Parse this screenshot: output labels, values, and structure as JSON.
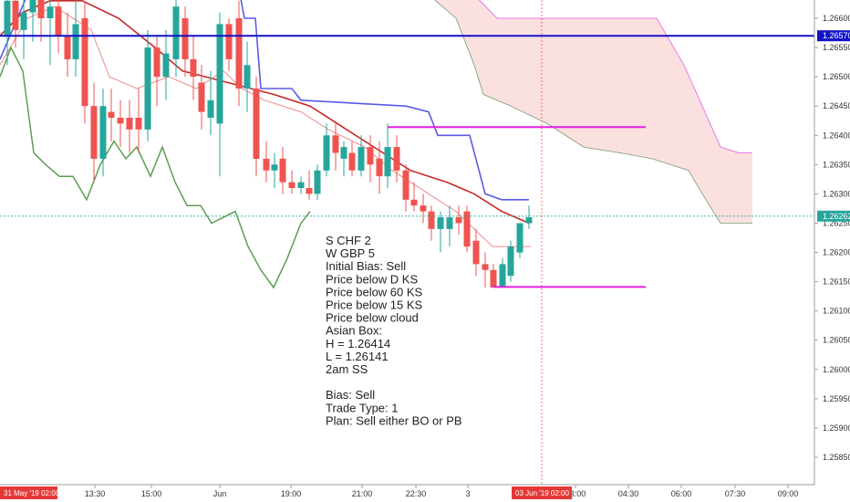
{
  "chart_data": {
    "type": "candlestick",
    "y_axis": {
      "ticks": [
        "1.26600",
        "1.26550",
        "1.26500",
        "1.26450",
        "1.26400",
        "1.26350",
        "1.26300",
        "1.26250",
        "1.26200",
        "1.26150",
        "1.26100",
        "1.26050",
        "1.26000",
        "1.25950",
        "1.25900",
        "1.25850"
      ],
      "range": [
        1.25825,
        1.26665
      ]
    },
    "x_axis": {
      "ticks": [
        "13:30",
        "15:00",
        "Jun",
        "19:00",
        "21:00",
        "22:30",
        "3",
        "03:00",
        "04:30",
        "06:00",
        "07:30",
        "09:00"
      ],
      "start_label": "31 May '19  02:00",
      "cursor_label": "03 Jun '19  02:00"
    },
    "price_labels": [
      {
        "value": "1.26570",
        "price": 1.2657,
        "color": "#1212c8"
      },
      {
        "value": "1.26262",
        "price": 1.26262,
        "color": "#26a69a"
      }
    ],
    "colors": {
      "up": "#26a69a",
      "down": "#ef5350",
      "kijun": "#5a5ae6",
      "ma": "#c62828",
      "tenkan": "#f08a8a",
      "lagging": "#5c9e52",
      "asian_box": "#e020e0",
      "cloud": "#fadada"
    },
    "candles": [
      {
        "x": 8,
        "o": 1.2657,
        "h": 1.2667,
        "l": 1.2652,
        "c": 1.2663
      },
      {
        "x": 17,
        "o": 1.2663,
        "h": 1.2666,
        "l": 1.2655,
        "c": 1.2658
      },
      {
        "x": 26,
        "o": 1.2658,
        "h": 1.2664,
        "l": 1.2653,
        "c": 1.2661
      },
      {
        "x": 36,
        "o": 1.2661,
        "h": 1.2666,
        "l": 1.2656,
        "c": 1.2665
      },
      {
        "x": 45,
        "o": 1.2665,
        "h": 1.2667,
        "l": 1.2656,
        "c": 1.266
      },
      {
        "x": 55,
        "o": 1.266,
        "h": 1.2664,
        "l": 1.2652,
        "c": 1.2662
      },
      {
        "x": 64,
        "o": 1.2662,
        "h": 1.2666,
        "l": 1.2654,
        "c": 1.2657
      },
      {
        "x": 74,
        "o": 1.2657,
        "h": 1.2661,
        "l": 1.265,
        "c": 1.2653
      },
      {
        "x": 83,
        "o": 1.2653,
        "h": 1.2665,
        "l": 1.265,
        "c": 1.2659
      },
      {
        "x": 93,
        "o": 1.266,
        "h": 1.2663,
        "l": 1.2642,
        "c": 1.2645
      },
      {
        "x": 103,
        "o": 1.2645,
        "h": 1.2649,
        "l": 1.2632,
        "c": 1.2636
      },
      {
        "x": 113,
        "o": 1.2636,
        "h": 1.2648,
        "l": 1.2633,
        "c": 1.2645
      },
      {
        "x": 122,
        "o": 1.2644,
        "h": 1.2648,
        "l": 1.2639,
        "c": 1.2643
      },
      {
        "x": 132,
        "o": 1.2643,
        "h": 1.2646,
        "l": 1.2638,
        "c": 1.2642
      },
      {
        "x": 142,
        "o": 1.2643,
        "h": 1.2646,
        "l": 1.2637,
        "c": 1.2641
      },
      {
        "x": 152,
        "o": 1.2643,
        "h": 1.2648,
        "l": 1.2637,
        "c": 1.2641
      },
      {
        "x": 162,
        "o": 1.2641,
        "h": 1.2658,
        "l": 1.2639,
        "c": 1.2655
      },
      {
        "x": 172,
        "o": 1.2655,
        "h": 1.2657,
        "l": 1.2645,
        "c": 1.265
      },
      {
        "x": 182,
        "o": 1.265,
        "h": 1.2658,
        "l": 1.2646,
        "c": 1.2654
      },
      {
        "x": 193,
        "o": 1.2653,
        "h": 1.2664,
        "l": 1.265,
        "c": 1.2662
      },
      {
        "x": 203,
        "o": 1.266,
        "h": 1.2662,
        "l": 1.265,
        "c": 1.2653
      },
      {
        "x": 212,
        "o": 1.2653,
        "h": 1.2657,
        "l": 1.2646,
        "c": 1.265
      },
      {
        "x": 221,
        "o": 1.2649,
        "h": 1.2652,
        "l": 1.2641,
        "c": 1.2644
      },
      {
        "x": 231,
        "o": 1.2643,
        "h": 1.2651,
        "l": 1.264,
        "c": 1.2646
      },
      {
        "x": 241,
        "o": 1.2642,
        "h": 1.2661,
        "l": 1.2633,
        "c": 1.2659
      },
      {
        "x": 251,
        "o": 1.2659,
        "h": 1.266,
        "l": 1.2651,
        "c": 1.2653
      },
      {
        "x": 262,
        "o": 1.266,
        "h": 1.2663,
        "l": 1.2645,
        "c": 1.2648
      },
      {
        "x": 271,
        "o": 1.2648,
        "h": 1.2656,
        "l": 1.2644,
        "c": 1.2652
      },
      {
        "x": 281,
        "o": 1.2648,
        "h": 1.265,
        "l": 1.2633,
        "c": 1.2636
      },
      {
        "x": 292,
        "o": 1.2636,
        "h": 1.2639,
        "l": 1.2632,
        "c": 1.2634
      },
      {
        "x": 301,
        "o": 1.2634,
        "h": 1.2637,
        "l": 1.2631,
        "c": 1.2635
      },
      {
        "x": 310,
        "o": 1.2636,
        "h": 1.2638,
        "l": 1.263,
        "c": 1.2632
      },
      {
        "x": 320,
        "o": 1.2632,
        "h": 1.2634,
        "l": 1.263,
        "c": 1.2631
      },
      {
        "x": 330,
        "o": 1.2631,
        "h": 1.2633,
        "l": 1.263,
        "c": 1.2632
      },
      {
        "x": 339,
        "o": 1.2631,
        "h": 1.2634,
        "l": 1.2629,
        "c": 1.263
      },
      {
        "x": 348,
        "o": 1.263,
        "h": 1.2635,
        "l": 1.2629,
        "c": 1.2634
      },
      {
        "x": 358,
        "o": 1.2634,
        "h": 1.2642,
        "l": 1.2633,
        "c": 1.264
      },
      {
        "x": 368,
        "o": 1.264,
        "h": 1.2642,
        "l": 1.2634,
        "c": 1.2637
      },
      {
        "x": 377,
        "o": 1.2636,
        "h": 1.2639,
        "l": 1.2633,
        "c": 1.2638
      },
      {
        "x": 386,
        "o": 1.2637,
        "h": 1.2639,
        "l": 1.2633,
        "c": 1.2634
      },
      {
        "x": 396,
        "o": 1.2634,
        "h": 1.264,
        "l": 1.2633,
        "c": 1.2638
      },
      {
        "x": 406,
        "o": 1.2638,
        "h": 1.264,
        "l": 1.2632,
        "c": 1.2635
      },
      {
        "x": 416,
        "o": 1.2636,
        "h": 1.2639,
        "l": 1.263,
        "c": 1.2633
      },
      {
        "x": 425,
        "o": 1.2633,
        "h": 1.2642,
        "l": 1.2631,
        "c": 1.2638
      },
      {
        "x": 435,
        "o": 1.2638,
        "h": 1.264,
        "l": 1.2632,
        "c": 1.2634
      },
      {
        "x": 445,
        "o": 1.2634,
        "h": 1.2635,
        "l": 1.2627,
        "c": 1.2629
      },
      {
        "x": 454,
        "o": 1.2629,
        "h": 1.2632,
        "l": 1.2627,
        "c": 1.2628
      },
      {
        "x": 464,
        "o": 1.2628,
        "h": 1.263,
        "l": 1.2625,
        "c": 1.2627
      },
      {
        "x": 473,
        "o": 1.2627,
        "h": 1.2628,
        "l": 1.2622,
        "c": 1.2624
      },
      {
        "x": 483,
        "o": 1.2624,
        "h": 1.2627,
        "l": 1.262,
        "c": 1.2626
      },
      {
        "x": 493,
        "o": 1.2624,
        "h": 1.2628,
        "l": 1.2621,
        "c": 1.2626
      },
      {
        "x": 503,
        "o": 1.2626,
        "h": 1.2628,
        "l": 1.2623,
        "c": 1.2625
      },
      {
        "x": 512,
        "o": 1.2627,
        "h": 1.2628,
        "l": 1.262,
        "c": 1.2621
      },
      {
        "x": 522,
        "o": 1.2622,
        "h": 1.2624,
        "l": 1.2616,
        "c": 1.2618
      },
      {
        "x": 532,
        "o": 1.2618,
        "h": 1.262,
        "l": 1.2614,
        "c": 1.2617
      },
      {
        "x": 541,
        "o": 1.2617,
        "h": 1.2618,
        "l": 1.2614,
        "c": 1.2614
      },
      {
        "x": 551,
        "o": 1.2614,
        "h": 1.2619,
        "l": 1.2614,
        "c": 1.2618
      },
      {
        "x": 560,
        "o": 1.2616,
        "h": 1.2622,
        "l": 1.2615,
        "c": 1.2621
      },
      {
        "x": 570,
        "o": 1.262,
        "h": 1.2625,
        "l": 1.2619,
        "c": 1.2625
      },
      {
        "x": 580,
        "o": 1.2625,
        "h": 1.2628,
        "l": 1.2624,
        "c": 1.2626
      }
    ],
    "lines": [
      {
        "name": "kijun",
        "points": [
          [
            0,
            1.2653
          ],
          [
            30,
            1.2664
          ],
          [
            60,
            1.2666
          ],
          [
            90,
            1.2666
          ],
          [
            110,
            1.2665
          ],
          [
            262,
            1.2665
          ],
          [
            268,
            1.266
          ],
          [
            280,
            1.266
          ],
          [
            286,
            1.2648
          ],
          [
            320,
            1.2648
          ],
          [
            330,
            1.2646
          ],
          [
            445,
            1.2645
          ],
          [
            470,
            1.2644
          ],
          [
            480,
            1.264
          ],
          [
            515,
            1.264
          ],
          [
            532,
            1.263
          ],
          [
            550,
            1.2629
          ],
          [
            580,
            1.2629
          ]
        ]
      },
      {
        "name": "ma",
        "points": [
          [
            0,
            1.2657
          ],
          [
            25,
            1.2661
          ],
          [
            55,
            1.2663
          ],
          [
            90,
            1.2663
          ],
          [
            130,
            1.266
          ],
          [
            170,
            1.2655
          ],
          [
            200,
            1.2651
          ],
          [
            250,
            1.2649
          ],
          [
            300,
            1.2647
          ],
          [
            340,
            1.2645
          ],
          [
            380,
            1.2641
          ],
          [
            420,
            1.2637
          ],
          [
            450,
            1.2634
          ],
          [
            490,
            1.2632
          ],
          [
            520,
            1.263
          ],
          [
            550,
            1.2627
          ],
          [
            580,
            1.2625
          ]
        ]
      },
      {
        "name": "tenkan",
        "points": [
          [
            0,
            1.2652
          ],
          [
            30,
            1.266
          ],
          [
            60,
            1.2662
          ],
          [
            100,
            1.2658
          ],
          [
            120,
            1.265
          ],
          [
            150,
            1.2648
          ],
          [
            185,
            1.265
          ],
          [
            215,
            1.2648
          ],
          [
            245,
            1.2651
          ],
          [
            265,
            1.2648
          ],
          [
            290,
            1.2646
          ],
          [
            330,
            1.2644
          ],
          [
            360,
            1.2641
          ],
          [
            400,
            1.2638
          ],
          [
            430,
            1.2634
          ],
          [
            470,
            1.263
          ],
          [
            500,
            1.2627
          ],
          [
            520,
            1.2624
          ],
          [
            540,
            1.2621
          ],
          [
            565,
            1.2621
          ],
          [
            582,
            1.2621
          ]
        ]
      },
      {
        "name": "lagging",
        "points": [
          [
            0,
            1.265
          ],
          [
            12,
            1.2655
          ],
          [
            25,
            1.2651
          ],
          [
            37,
            1.2637
          ],
          [
            50,
            1.2635
          ],
          [
            65,
            1.2633
          ],
          [
            80,
            1.2633
          ],
          [
            95,
            1.2629
          ],
          [
            110,
            1.2635
          ],
          [
            125,
            1.2639
          ],
          [
            138,
            1.2636
          ],
          [
            150,
            1.2638
          ],
          [
            165,
            1.2633
          ],
          [
            178,
            1.2638
          ],
          [
            192,
            1.2632
          ],
          [
            205,
            1.2628
          ],
          [
            220,
            1.2628
          ],
          [
            232,
            1.2625
          ],
          [
            245,
            1.2626
          ],
          [
            258,
            1.2627
          ],
          [
            272,
            1.2621
          ],
          [
            286,
            1.2617
          ],
          [
            300,
            1.2614
          ],
          [
            315,
            1.2619
          ],
          [
            330,
            1.2625
          ],
          [
            340,
            1.2627
          ]
        ]
      }
    ],
    "cloud": {
      "top": [
        [
          343,
          1.2672
        ],
        [
          400,
          1.2672
        ],
        [
          440,
          1.2672
        ],
        [
          490,
          1.2672
        ],
        [
          500,
          1.2668
        ],
        [
          520,
          1.2664
        ],
        [
          545,
          1.266
        ],
        [
          575,
          1.266
        ],
        [
          600,
          1.266
        ],
        [
          640,
          1.266
        ],
        [
          680,
          1.266
        ],
        [
          720,
          1.266
        ],
        [
          735,
          1.2656
        ],
        [
          750,
          1.2652
        ],
        [
          770,
          1.2645
        ],
        [
          790,
          1.2638
        ],
        [
          810,
          1.2637
        ],
        [
          825,
          1.2637
        ]
      ],
      "bottom": [
        [
          343,
          1.2672
        ],
        [
          380,
          1.2668
        ],
        [
          420,
          1.2664
        ],
        [
          470,
          1.2664
        ],
        [
          500,
          1.266
        ],
        [
          520,
          1.2652
        ],
        [
          530,
          1.2647
        ],
        [
          560,
          1.2645
        ],
        [
          600,
          1.2642
        ],
        [
          640,
          1.2638
        ],
        [
          680,
          1.2637
        ],
        [
          715,
          1.2636
        ],
        [
          735,
          1.2635
        ],
        [
          755,
          1.2634
        ],
        [
          770,
          1.263
        ],
        [
          790,
          1.2625
        ],
        [
          810,
          1.2625
        ],
        [
          825,
          1.2625
        ]
      ]
    },
    "asian_box": {
      "high": 1.26414,
      "low": 1.26141,
      "high_x": [
        425,
        708
      ],
      "low_x": [
        541,
        708
      ]
    },
    "horizontal_lines": [
      {
        "price": 1.2657,
        "color": "#1212c8"
      },
      {
        "price": 1.26262,
        "color": "#26a69a",
        "dashed": true
      }
    ],
    "cursor_x": 594
  },
  "annotation": {
    "lines": [
      "S CHF 2",
      "W GBP 5",
      "Initial Bias: Sell",
      "Price below D KS",
      "Price below 60 KS",
      "Price below 15 KS",
      "Price below cloud",
      "Asian Box:",
      "H = 1.26414",
      "L = 1.26141",
      "2am SS",
      "",
      "Bias: Sell",
      "Trade Type: 1",
      "Plan: Sell either BO or PB"
    ]
  }
}
